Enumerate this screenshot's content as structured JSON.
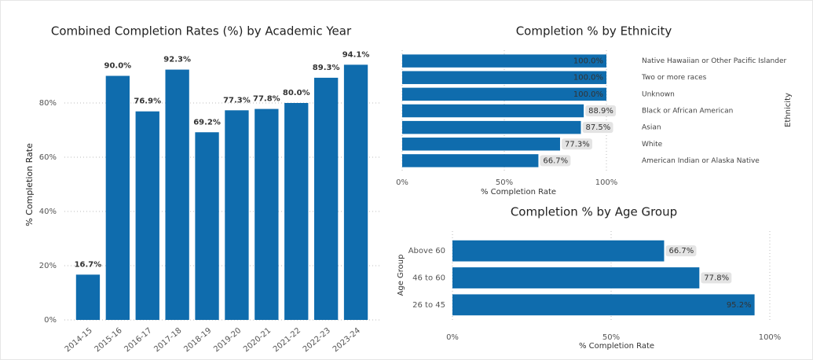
{
  "chart_data": [
    {
      "type": "column",
      "title": "Combined Completion Rates (%) by Academic Year",
      "y_label": "% Completion Rate",
      "categories": [
        "2014-15",
        "2015-16",
        "2016-17",
        "2017-18",
        "2018-19",
        "2019-20",
        "2020-21",
        "2021-22",
        "2022-23",
        "2023-24"
      ],
      "values": [
        16.7,
        90.0,
        76.9,
        92.3,
        69.2,
        77.3,
        77.8,
        80.0,
        89.3,
        94.1
      ],
      "value_labels": [
        "16.7%",
        "90.0%",
        "76.9%",
        "92.3%",
        "69.2%",
        "77.3%",
        "77.8%",
        "80.0%",
        "89.3%",
        "94.1%"
      ],
      "color": "#0f6cad",
      "ylim": [
        0,
        100
      ],
      "yticks": [
        {
          "value": 0,
          "label": "0%"
        },
        {
          "value": 20,
          "label": "20%"
        },
        {
          "value": 40,
          "label": "40%"
        },
        {
          "value": 60,
          "label": "60%"
        },
        {
          "value": 80,
          "label": "80%"
        }
      ],
      "grid": true
    },
    {
      "type": "bar",
      "title": "Completion % by Ethnicity",
      "x_label": "% Completion Rate",
      "y_label": "Ethnicity",
      "categories": [
        "Native Hawaiian or Other Pacific Islander",
        "Two or more races",
        "Unknown",
        "Black or African American",
        "Asian",
        "White",
        "American Indian or Alaska Native"
      ],
      "values": [
        100.0,
        100.0,
        100.0,
        88.9,
        87.5,
        77.3,
        66.7
      ],
      "value_labels": [
        "100.0%",
        "100.0%",
        "100.0%",
        "88.9%",
        "87.5%",
        "77.3%",
        "66.7%"
      ],
      "color": "#0f6cad",
      "xlim": [
        0,
        100
      ],
      "xticks": [
        {
          "value": 0,
          "label": "0%"
        },
        {
          "value": 50,
          "label": "50%"
        },
        {
          "value": 100,
          "label": "100%"
        }
      ],
      "grid": true
    },
    {
      "type": "bar",
      "title": "Completion % by Age Group",
      "x_label": "% Completion Rate",
      "y_label": "Age Group",
      "categories": [
        "Above 60",
        "46 to 60",
        "26 to 45"
      ],
      "values": [
        66.7,
        77.8,
        95.2
      ],
      "value_labels": [
        "66.7%",
        "77.8%",
        "95.2%"
      ],
      "color": "#0f6cad",
      "xlim": [
        0,
        100
      ],
      "xticks": [
        {
          "value": 0,
          "label": "0%"
        },
        {
          "value": 50,
          "label": "50%"
        },
        {
          "value": 100,
          "label": "100%"
        }
      ],
      "grid": true
    }
  ]
}
